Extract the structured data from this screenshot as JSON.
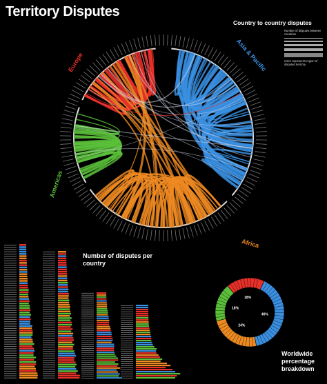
{
  "title": "Territory Disputes",
  "legend": {
    "title": "Country to country disputes",
    "width_label": "Number of disputes between countries",
    "color_label": "Color represents region of disputed territory"
  },
  "regions": [
    {
      "name": "Europe",
      "color": "#e8302a"
    },
    {
      "name": "Asia & Pacific",
      "color": "#3a8fe0"
    },
    {
      "name": "Africa",
      "color": "#ee8a22"
    },
    {
      "name": "Americas",
      "color": "#5bbf3a"
    }
  ],
  "bars_title": "Number of disputes per country",
  "pct_title": "Worldwide percentage breakdown",
  "chart_data": {
    "type": "pie",
    "title": "Worldwide percentage breakdown",
    "categories": [
      "Europe",
      "Asia & Pacific",
      "Africa",
      "Americas"
    ],
    "values": [
      18,
      40,
      24,
      18
    ],
    "labels": [
      "18%",
      "40%",
      "24%",
      "18%"
    ]
  }
}
